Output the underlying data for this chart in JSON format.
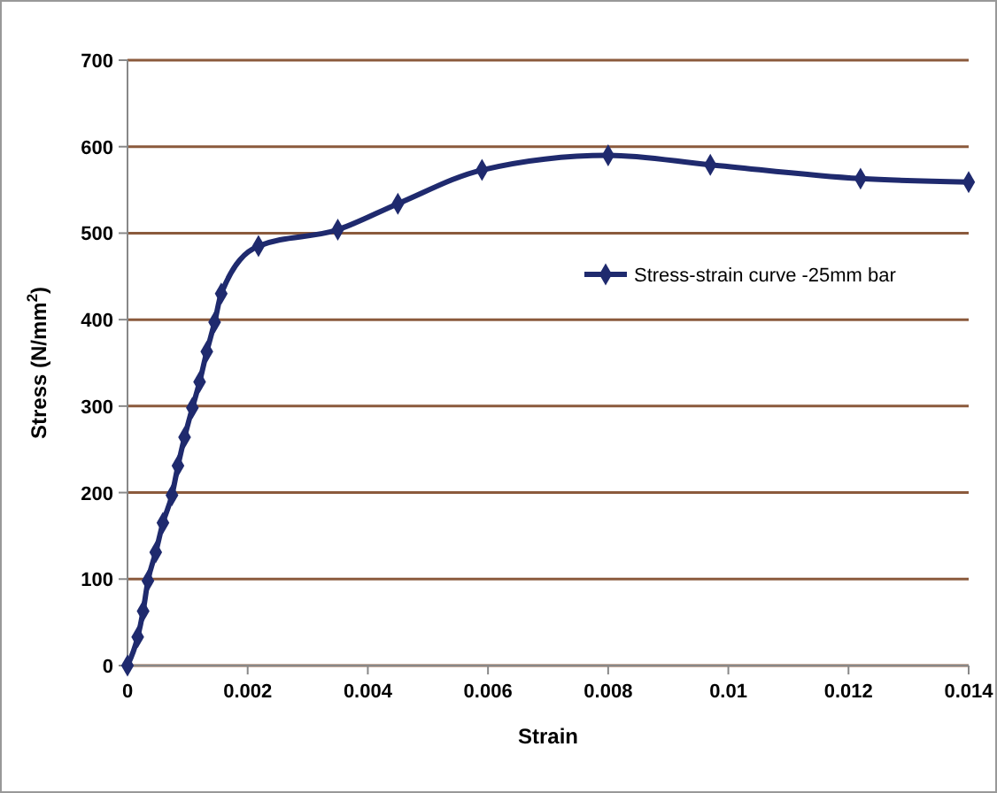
{
  "chart_data": {
    "type": "line",
    "xlabel": "Strain",
    "ylabel": "Stress (N/mm$^{2}$)",
    "x": [
      0,
      0.00017,
      0.00026,
      0.00034,
      0.00047,
      0.00059,
      0.00074,
      0.00084,
      0.00095,
      0.00108,
      0.0012,
      0.00132,
      0.00145,
      0.00156,
      0.00218,
      0.0035,
      0.0045,
      0.0059,
      0.008,
      0.0097,
      0.0122,
      0.014
    ],
    "series": [
      {
        "name": "Stress-strain curve -25mm bar",
        "color": "#1f2a6e",
        "values": [
          0,
          33,
          63,
          98,
          131,
          165,
          197,
          231,
          264,
          298,
          328,
          363,
          397,
          430,
          485,
          504,
          534,
          573,
          590,
          579,
          563,
          559
        ]
      }
    ],
    "xlim": [
      0,
      0.014
    ],
    "xticks": [
      0,
      0.002,
      0.004,
      0.006,
      0.008,
      0.01,
      0.012,
      0.014
    ],
    "ylim": [
      0,
      700
    ],
    "yticks": [
      0,
      100,
      200,
      300,
      400,
      500,
      600,
      700
    ],
    "grid": "y",
    "legend": "right",
    "marker": "diamond",
    "line_style": "solid"
  }
}
